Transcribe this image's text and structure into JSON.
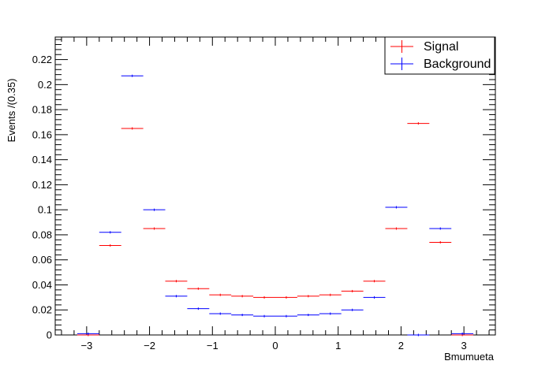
{
  "chart_data": {
    "type": "scatter",
    "title": "",
    "xlabel": "Bmumueta",
    "ylabel": "Events /(0.35)",
    "xlim": [
      -3.5,
      3.5
    ],
    "ylim": [
      0,
      0.238
    ],
    "x_ticks": [
      "−3",
      "−2",
      "−1",
      "0",
      "1",
      "2",
      "3"
    ],
    "x_tick_values": [
      -3,
      -2,
      -1,
      0,
      1,
      2,
      3
    ],
    "y_ticks": [
      "0",
      "0.02",
      "0.04",
      "0.06",
      "0.08",
      "0.1",
      "0.12",
      "0.14",
      "0.16",
      "0.18",
      "0.2",
      "0.22"
    ],
    "y_tick_values": [
      0,
      0.02,
      0.04,
      0.06,
      0.08,
      0.1,
      0.12,
      0.14,
      0.16,
      0.18,
      0.2,
      0.22
    ],
    "bin_width": 0.35,
    "bin_centers": [
      -2.975,
      -2.625,
      -2.275,
      -1.925,
      -1.575,
      -1.225,
      -0.875,
      -0.525,
      -0.175,
      0.175,
      0.525,
      0.875,
      1.225,
      1.575,
      1.925,
      2.275,
      2.625,
      2.975
    ],
    "legend_position": "top-right",
    "series": [
      {
        "name": "Signal",
        "color": "#ff0000",
        "values": [
          0,
          0.0715,
          0.165,
          0.085,
          0.043,
          0.037,
          0.032,
          0.031,
          0.03,
          0.03,
          0.031,
          0.032,
          0.035,
          0.043,
          0.085,
          0.169,
          0.074,
          0
        ]
      },
      {
        "name": "Background",
        "color": "#0000ff",
        "values": [
          0.001,
          0.082,
          0.207,
          0.1,
          0.031,
          0.021,
          0.017,
          0.016,
          0.015,
          0.015,
          0.016,
          0.017,
          0.02,
          0.03,
          0.102,
          0,
          0.085,
          0.001
        ]
      }
    ]
  }
}
